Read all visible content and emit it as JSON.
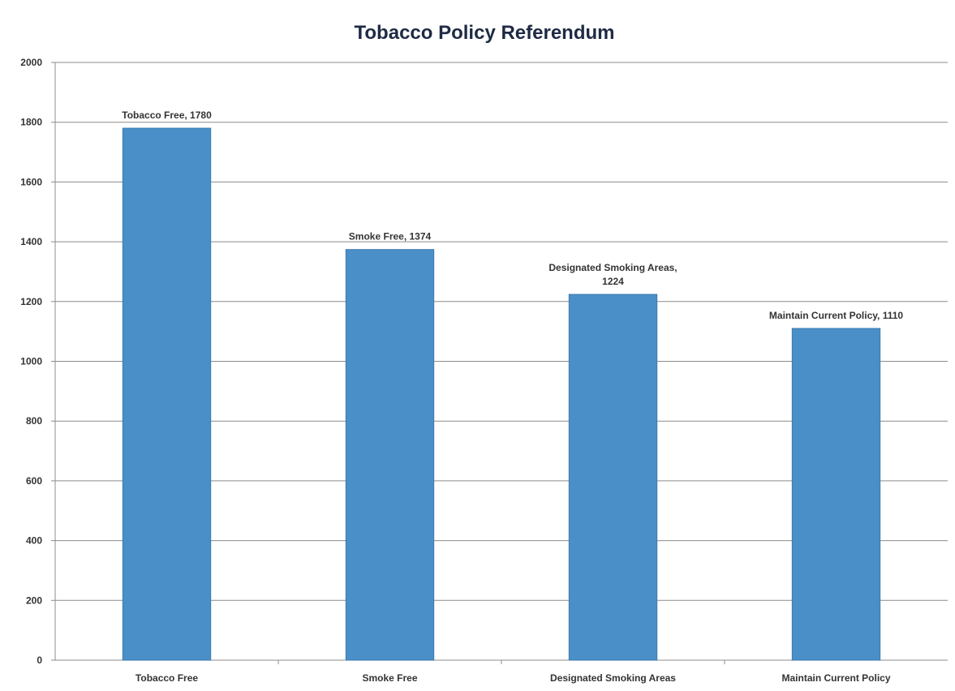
{
  "chart_data": {
    "type": "bar",
    "title": "Tobacco Policy Referendum",
    "xlabel": "",
    "ylabel": "",
    "categories": [
      "Tobacco Free",
      "Smoke Free",
      "Designated Smoking Areas",
      "Maintain Current Policy"
    ],
    "values": [
      1780,
      1374,
      1224,
      1110
    ],
    "data_labels": [
      [
        "Tobacco Free, 1780"
      ],
      [
        "Smoke Free, 1374"
      ],
      [
        "Designated Smoking Areas,",
        "1224"
      ],
      [
        "Maintain Current Policy, 1110"
      ]
    ],
    "ylim": [
      0,
      2000
    ],
    "yticks": [
      0,
      200,
      400,
      600,
      800,
      1000,
      1200,
      1400,
      1600,
      1800,
      2000
    ],
    "grid": true,
    "legend": "none",
    "bar_color": "#4a8fc8",
    "bar_edge_color": "#3a7ab0",
    "gridline_color": "#8c8c8c"
  }
}
